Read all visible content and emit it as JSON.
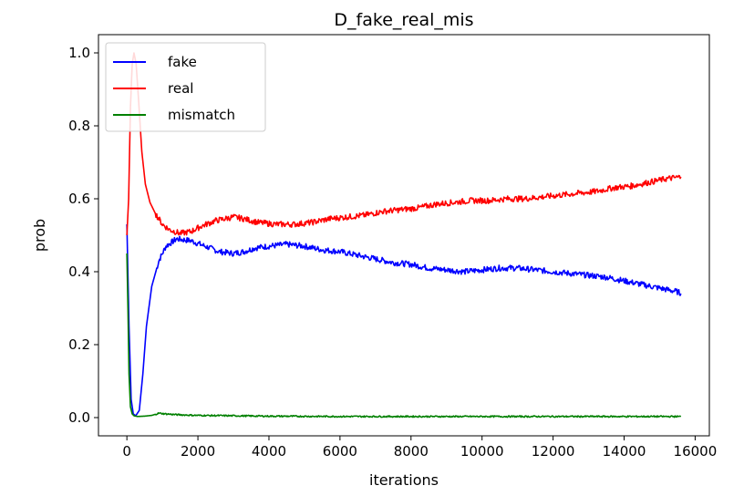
{
  "chart_data": {
    "type": "line",
    "title": "D_fake_real_mis",
    "xlabel": "iterations",
    "ylabel": "prob",
    "xlim": [
      -800,
      16400
    ],
    "ylim": [
      -0.05,
      1.05
    ],
    "xticks": [
      0,
      2000,
      4000,
      6000,
      8000,
      10000,
      12000,
      14000,
      16000
    ],
    "xtick_labels": [
      "0",
      "2000",
      "4000",
      "6000",
      "8000",
      "10000",
      "12000",
      "14000",
      "16000"
    ],
    "yticks": [
      0.0,
      0.2,
      0.4,
      0.6,
      0.8,
      1.0
    ],
    "ytick_labels": [
      "0.0",
      "0.2",
      "0.4",
      "0.6",
      "0.8",
      "1.0"
    ],
    "grid": false,
    "legend_position": "top-left",
    "series": [
      {
        "name": "fake",
        "color": "#0000ff",
        "x": [
          0,
          60,
          120,
          180,
          250,
          350,
          450,
          550,
          700,
          900,
          1100,
          1400,
          1800,
          2200,
          2600,
          3000,
          3300,
          3600,
          4000,
          4500,
          5000,
          5500,
          6000,
          6500,
          7000,
          7500,
          8000,
          8500,
          9000,
          9500,
          10000,
          10500,
          11000,
          11500,
          12000,
          12500,
          13000,
          13500,
          14000,
          14500,
          15000,
          15500,
          15600
        ],
        "y": [
          0.53,
          0.25,
          0.05,
          0.01,
          0.005,
          0.02,
          0.12,
          0.25,
          0.36,
          0.43,
          0.47,
          0.49,
          0.485,
          0.47,
          0.455,
          0.45,
          0.455,
          0.465,
          0.47,
          0.475,
          0.47,
          0.46,
          0.455,
          0.445,
          0.435,
          0.425,
          0.42,
          0.41,
          0.405,
          0.4,
          0.405,
          0.41,
          0.41,
          0.405,
          0.4,
          0.395,
          0.39,
          0.385,
          0.375,
          0.365,
          0.355,
          0.345,
          0.34
        ]
      },
      {
        "name": "real",
        "color": "#ff0000",
        "x": [
          0,
          50,
          100,
          150,
          200,
          260,
          330,
          420,
          520,
          650,
          800,
          1000,
          1200,
          1500,
          1800,
          2100,
          2500,
          3000,
          3300,
          3700,
          4200,
          4700,
          5200,
          5700,
          6200,
          6700,
          7200,
          7700,
          8200,
          8700,
          9200,
          9700,
          10200,
          10700,
          11200,
          11700,
          12200,
          12700,
          13200,
          13700,
          14200,
          14700,
          15200,
          15600
        ],
        "y": [
          0.5,
          0.6,
          0.85,
          0.97,
          1.0,
          0.97,
          0.87,
          0.73,
          0.64,
          0.59,
          0.56,
          0.53,
          0.515,
          0.505,
          0.51,
          0.525,
          0.54,
          0.55,
          0.545,
          0.535,
          0.53,
          0.53,
          0.535,
          0.545,
          0.55,
          0.555,
          0.565,
          0.57,
          0.575,
          0.585,
          0.59,
          0.595,
          0.595,
          0.6,
          0.6,
          0.605,
          0.61,
          0.615,
          0.62,
          0.63,
          0.635,
          0.645,
          0.655,
          0.66
        ]
      },
      {
        "name": "mismatch",
        "color": "#008000",
        "x": [
          0,
          30,
          60,
          100,
          150,
          200,
          300,
          500,
          700,
          900,
          1100,
          1400,
          2000,
          3000,
          4000,
          6000,
          8000,
          10000,
          12000,
          14000,
          15600
        ],
        "y": [
          0.45,
          0.3,
          0.12,
          0.03,
          0.01,
          0.005,
          0.003,
          0.004,
          0.006,
          0.012,
          0.01,
          0.008,
          0.006,
          0.005,
          0.004,
          0.003,
          0.003,
          0.003,
          0.003,
          0.003,
          0.003
        ]
      }
    ]
  }
}
